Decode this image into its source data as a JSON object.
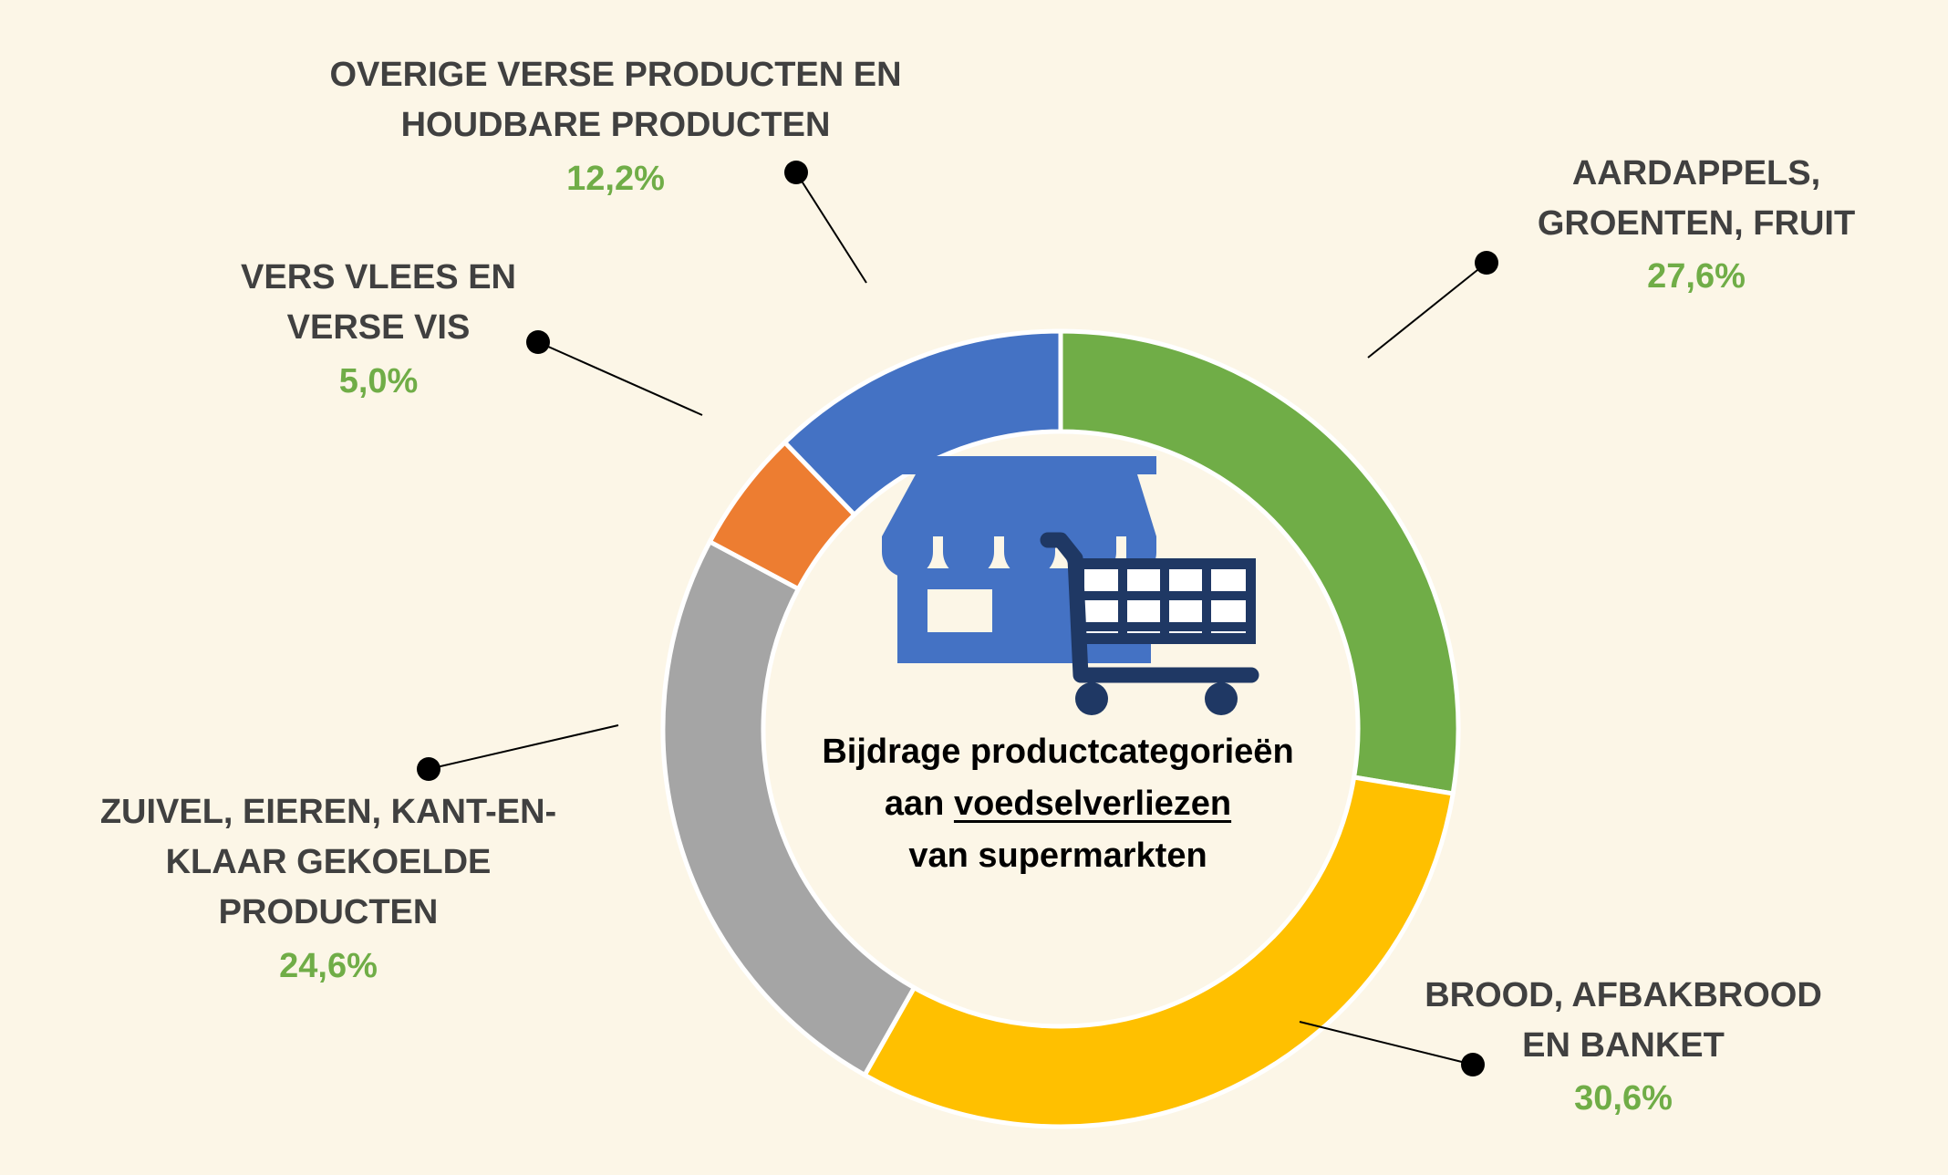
{
  "chart_data": {
    "type": "pie",
    "donut": true,
    "title_parts": [
      "Bijdrage productcategorieën",
      "aan",
      "voedselverliezen",
      "van supermarkten"
    ],
    "slices": [
      {
        "name": "AARDAPPELS,\nGROENTEN, FRUIT",
        "value": 27.6,
        "label": "27,6%",
        "color": "#70ad47"
      },
      {
        "name": "BROOD, AFBAKBROOD\nEN BANKET",
        "value": 30.6,
        "label": "30,6%",
        "color": "#ffc000"
      },
      {
        "name": "ZUIVEL, EIEREN, KANT-EN-\nKLAAR GEKOELDE\nPRODUCTEN",
        "value": 24.6,
        "label": "24,6%",
        "color": "#a5a5a5"
      },
      {
        "name": "VERS VLEES EN\nVERSE VIS",
        "value": 5.0,
        "label": "5,0%",
        "color": "#ed7d31"
      },
      {
        "name": "OVERIGE VERSE PRODUCTEN EN\nHOUDBARE PRODUCTEN",
        "value": 12.2,
        "label": "12,2%",
        "color": "#4472c4"
      }
    ],
    "legend": "none",
    "grid": false
  },
  "icons": {
    "store": {
      "name": "store-icon",
      "color": "#4472c4"
    },
    "cart": {
      "name": "shopping-cart-icon",
      "color": "#1f3864"
    }
  }
}
